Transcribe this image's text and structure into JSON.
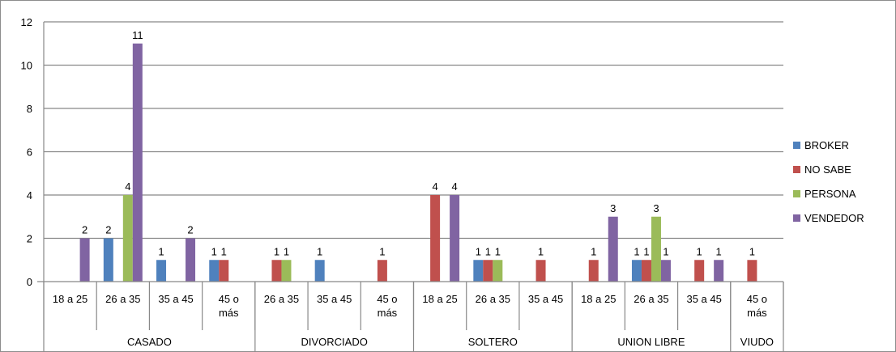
{
  "chart_data": {
    "type": "bar",
    "title": "",
    "xlabel": "",
    "ylabel": "",
    "ylim": [
      0,
      12
    ],
    "yticks": [
      0,
      2,
      4,
      6,
      8,
      10,
      12
    ],
    "grid": true,
    "legend_position": "right",
    "groups": [
      {
        "name": "CASADO",
        "categories": [
          "18 a 25",
          "26 a 35",
          "35 a 45",
          "45 o más"
        ]
      },
      {
        "name": "DIVORCIADO",
        "categories": [
          "26 a 35",
          "35 a 45",
          "45 o más"
        ]
      },
      {
        "name": "SOLTERO",
        "categories": [
          "18 a 25",
          "26 a 35",
          "35 a 45"
        ]
      },
      {
        "name": "UNION LIBRE",
        "categories": [
          "18 a 25",
          "26 a 35",
          "35 a 45"
        ]
      },
      {
        "name": "VIUDO",
        "categories": [
          "45 o más"
        ]
      }
    ],
    "series": [
      {
        "name": "BROKER",
        "color": "#4f81bd",
        "values": [
          null,
          2,
          1,
          1,
          null,
          1,
          null,
          null,
          1,
          null,
          null,
          1,
          null,
          null
        ]
      },
      {
        "name": "NO SABE",
        "color": "#c0504d",
        "values": [
          null,
          null,
          null,
          1,
          1,
          null,
          1,
          4,
          1,
          1,
          1,
          1,
          1,
          1
        ]
      },
      {
        "name": "PERSONA",
        "color": "#9bbb59",
        "values": [
          null,
          4,
          null,
          null,
          1,
          null,
          null,
          null,
          1,
          null,
          null,
          3,
          null,
          null
        ]
      },
      {
        "name": "VENDEDOR",
        "color": "#8064a2",
        "values": [
          2,
          11,
          2,
          null,
          null,
          null,
          null,
          4,
          null,
          null,
          3,
          1,
          1,
          null
        ]
      }
    ]
  }
}
